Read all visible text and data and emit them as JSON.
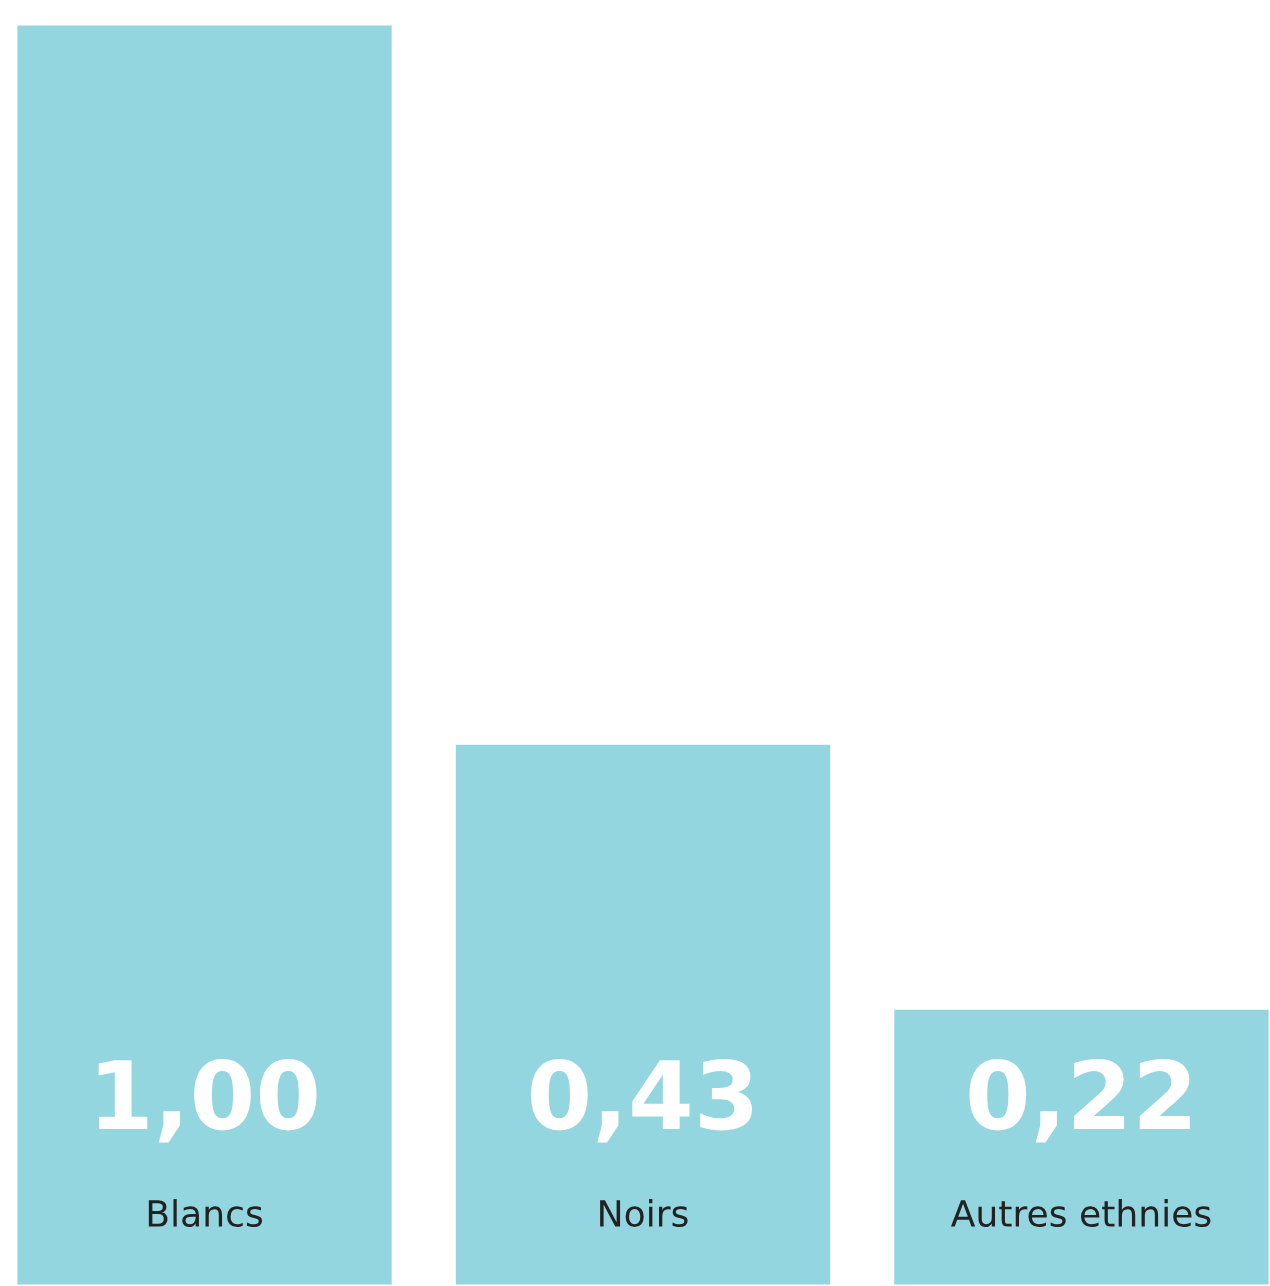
{
  "chart_data": {
    "type": "bar",
    "categories": [
      "Blancs",
      "Noirs",
      "Autres ethnies"
    ],
    "values": [
      1.0,
      0.43,
      0.22
    ],
    "value_labels": [
      "1,00",
      "0,43",
      "0,22"
    ],
    "color": "#94d6df"
  }
}
